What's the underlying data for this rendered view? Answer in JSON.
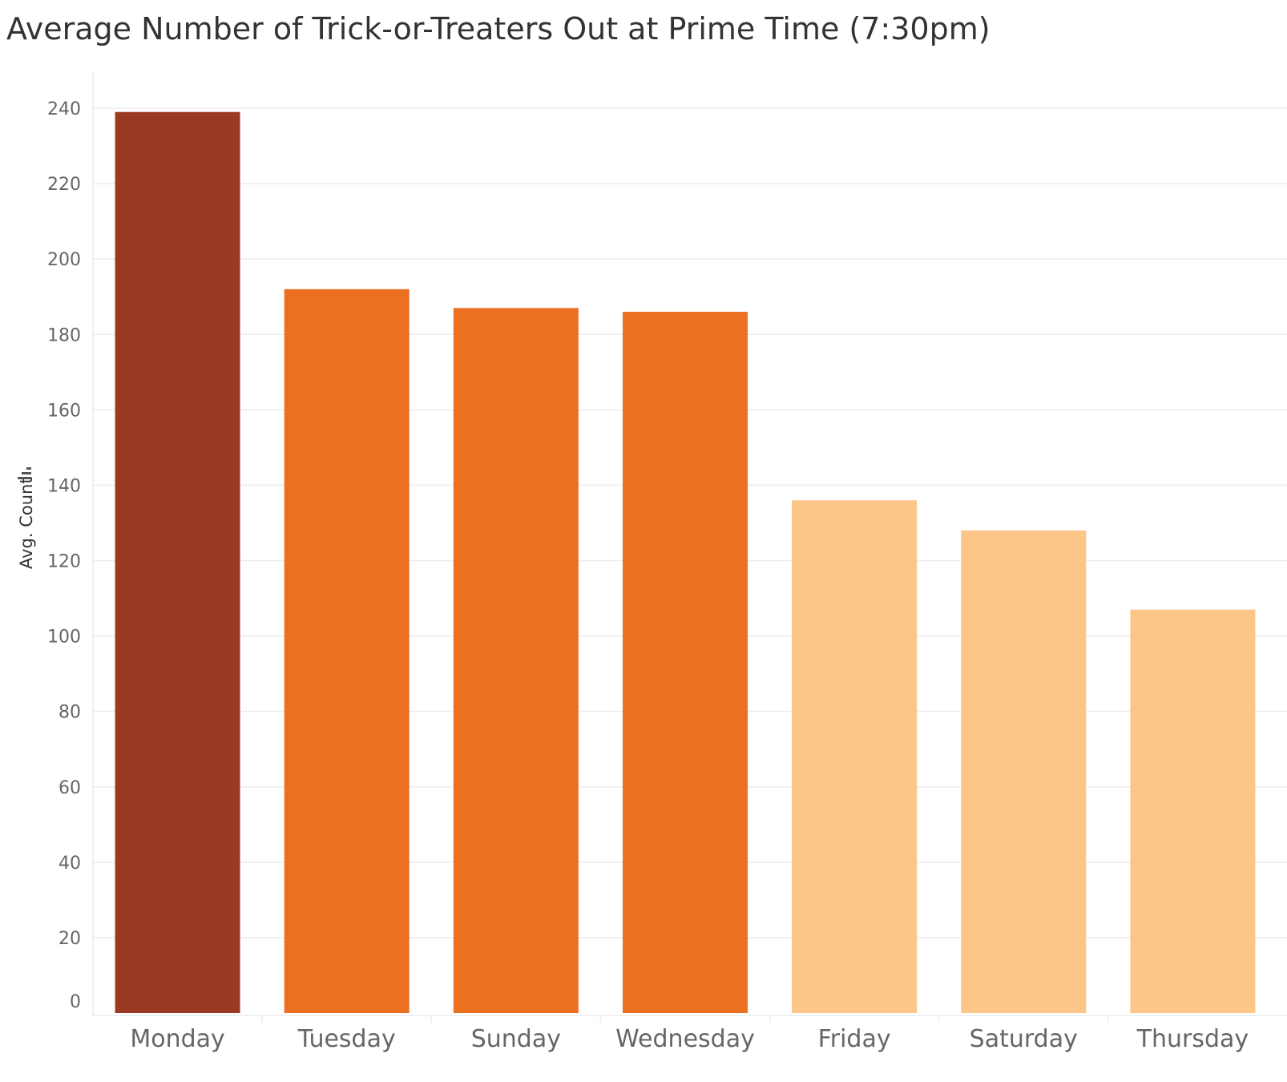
{
  "chart_data": {
    "type": "bar",
    "title": "Average Number of Trick-or-Treaters Out at Prime Time (7:30pm)",
    "xlabel": "",
    "ylabel": "Avg. Count",
    "ylim": [
      0,
      240
    ],
    "yticks": [
      0,
      20,
      40,
      60,
      80,
      100,
      120,
      140,
      160,
      180,
      200,
      220,
      240
    ],
    "grid": true,
    "categories": [
      "Monday",
      "Tuesday",
      "Sunday",
      "Wednesday",
      "Friday",
      "Saturday",
      "Thursday"
    ],
    "values": [
      239,
      192,
      187,
      186,
      136,
      128,
      107
    ],
    "colors": [
      "#9b3a22",
      "#eb7022",
      "#eb7022",
      "#eb7022",
      "#fcc689",
      "#fcc689",
      "#fcc689"
    ]
  },
  "colors": {
    "high": "#9b3a22",
    "mid": "#eb7022",
    "low": "#fcc689",
    "grid": "#ececec"
  },
  "icons": {
    "sort": "sort-descending-icon"
  }
}
